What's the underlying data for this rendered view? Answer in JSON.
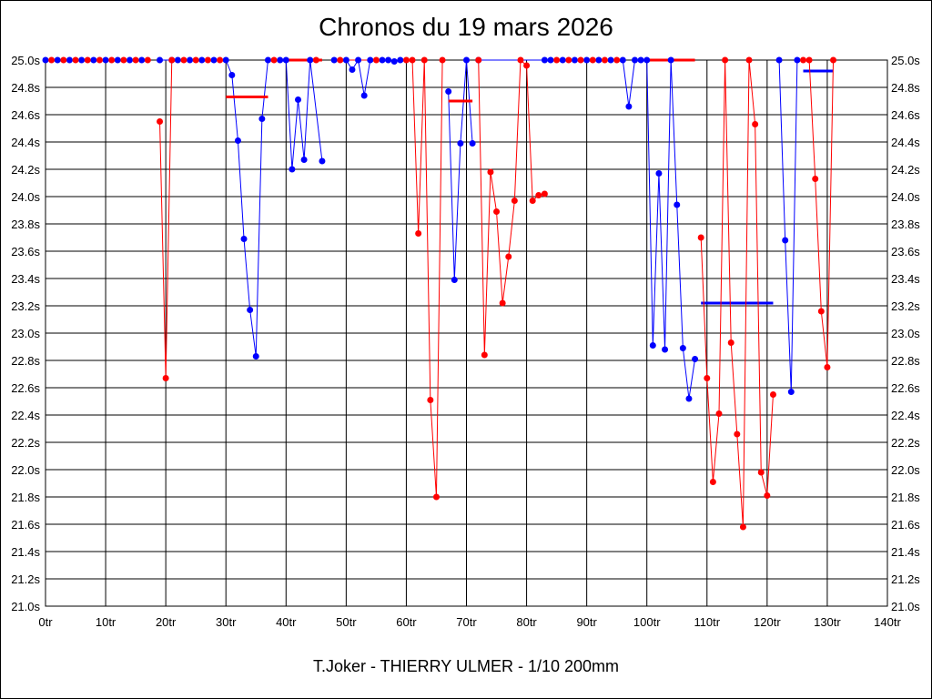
{
  "chart_data": {
    "type": "line",
    "title": "Chronos du 19 mars 2026",
    "xlabel": "T.Joker - THIERRY ULMER - 1/10 200mm",
    "ylabel": "",
    "xlim": [
      0,
      140
    ],
    "ylim": [
      21.0,
      25.0
    ],
    "x_ticks": [
      "0tr",
      "10tr",
      "20tr",
      "30tr",
      "40tr",
      "50tr",
      "60tr",
      "70tr",
      "80tr",
      "90tr",
      "100tr",
      "110tr",
      "120tr",
      "130tr",
      "140tr"
    ],
    "y_ticks": [
      "21.0s",
      "21.2s",
      "21.4s",
      "21.6s",
      "21.8s",
      "22.0s",
      "22.2s",
      "22.4s",
      "22.6s",
      "22.8s",
      "23.0s",
      "23.2s",
      "23.4s",
      "23.6s",
      "23.8s",
      "24.0s",
      "24.2s",
      "24.4s",
      "24.6s",
      "24.8s",
      "25.0s"
    ],
    "grid": true,
    "series": [
      {
        "name": "blue",
        "color": "#0000ff",
        "segments": [
          [
            [
              0,
              25
            ],
            [
              2,
              25
            ],
            [
              4,
              25
            ],
            [
              6,
              25
            ],
            [
              8,
              25
            ],
            [
              10,
              25
            ],
            [
              12,
              25
            ],
            [
              14,
              25
            ],
            [
              16,
              25
            ]
          ],
          [
            [
              19,
              25
            ],
            [
              21,
              25
            ],
            [
              22,
              25
            ],
            [
              24,
              25
            ],
            [
              26,
              25
            ],
            [
              28,
              25
            ],
            [
              30,
              25
            ],
            [
              31,
              24.89
            ],
            [
              32,
              24.41
            ],
            [
              33,
              23.69
            ],
            [
              34,
              23.17
            ],
            [
              35,
              22.83
            ],
            [
              36,
              24.57
            ],
            [
              37,
              25
            ],
            [
              39,
              25
            ],
            [
              40,
              25
            ],
            [
              41,
              24.2
            ],
            [
              42,
              24.71
            ],
            [
              43,
              24.27
            ],
            [
              44,
              25
            ],
            [
              46,
              24.26
            ]
          ],
          [
            [
              48,
              25
            ],
            [
              50,
              25
            ],
            [
              51,
              24.93
            ],
            [
              52,
              25
            ],
            [
              53,
              24.74
            ],
            [
              54,
              25
            ],
            [
              56,
              25
            ],
            [
              57,
              25
            ],
            [
              58,
              24.99
            ],
            [
              59,
              25
            ]
          ],
          [
            [
              67,
              24.77
            ],
            [
              68,
              23.39
            ],
            [
              69,
              24.39
            ],
            [
              70,
              25
            ],
            [
              71,
              24.39
            ]
          ],
          [
            [
              72,
              25
            ],
            [
              83,
              25
            ]
          ],
          [
            [
              84,
              25
            ],
            [
              86,
              25
            ],
            [
              88,
              25
            ],
            [
              90,
              25
            ],
            [
              92,
              25
            ],
            [
              94,
              25
            ],
            [
              96,
              25
            ],
            [
              97,
              24.66
            ],
            [
              98,
              25
            ],
            [
              99,
              25
            ],
            [
              100,
              25
            ],
            [
              101,
              22.91
            ],
            [
              102,
              24.17
            ],
            [
              103,
              22.88
            ],
            [
              104,
              25
            ],
            [
              105,
              23.94
            ],
            [
              106,
              22.89
            ],
            [
              107,
              22.52
            ],
            [
              108,
              22.81
            ]
          ],
          [
            [
              122,
              25
            ],
            [
              123,
              23.68
            ],
            [
              124,
              22.57
            ],
            [
              125,
              25
            ]
          ]
        ],
        "mean_lines": [
          [
            109,
            121,
            23.22
          ],
          [
            126,
            131,
            24.92
          ]
        ]
      },
      {
        "name": "red",
        "color": "#ff0000",
        "segments": [
          [
            [
              1,
              25
            ],
            [
              3,
              25
            ],
            [
              5,
              25
            ],
            [
              7,
              25
            ],
            [
              9,
              25
            ],
            [
              11,
              25
            ],
            [
              13,
              25
            ],
            [
              15,
              25
            ],
            [
              17,
              25
            ]
          ],
          [
            [
              19,
              24.55
            ],
            [
              20,
              22.67
            ],
            [
              21,
              25
            ],
            [
              23,
              25
            ],
            [
              25,
              25
            ],
            [
              27,
              25
            ],
            [
              29,
              25
            ]
          ],
          [
            [
              38,
              25
            ],
            [
              45,
              25
            ]
          ],
          [
            [
              49,
              25
            ],
            [
              55,
              25
            ]
          ],
          [
            [
              60,
              25
            ],
            [
              61,
              25
            ],
            [
              62,
              23.73
            ],
            [
              63,
              25
            ],
            [
              64,
              22.51
            ],
            [
              65,
              21.8
            ],
            [
              66,
              25
            ]
          ],
          [
            [
              72,
              25
            ],
            [
              73,
              22.84
            ],
            [
              74,
              24.18
            ],
            [
              75,
              23.89
            ],
            [
              76,
              23.22
            ],
            [
              77,
              23.56
            ],
            [
              78,
              23.97
            ],
            [
              79,
              25
            ],
            [
              80,
              24.96
            ],
            [
              81,
              23.97
            ],
            [
              82,
              24.01
            ],
            [
              83,
              24.02
            ]
          ],
          [
            [
              85,
              25
            ],
            [
              87,
              25
            ],
            [
              89,
              25
            ],
            [
              91,
              25
            ],
            [
              93,
              25
            ],
            [
              95,
              25
            ]
          ],
          [
            [
              109,
              23.7
            ],
            [
              110,
              22.67
            ],
            [
              111,
              21.91
            ],
            [
              112,
              22.41
            ],
            [
              113,
              25
            ],
            [
              114,
              22.93
            ],
            [
              115,
              22.26
            ],
            [
              116,
              21.58
            ],
            [
              117,
              25
            ],
            [
              118,
              24.53
            ],
            [
              119,
              21.98
            ],
            [
              120,
              21.81
            ],
            [
              121,
              22.55
            ]
          ],
          [
            [
              126,
              25
            ],
            [
              127,
              25
            ],
            [
              128,
              24.13
            ],
            [
              129,
              23.16
            ],
            [
              130,
              22.75
            ],
            [
              131,
              25
            ]
          ]
        ],
        "flat_lines": [
          [
            40,
            46,
            25
          ],
          [
            100,
            108,
            25
          ]
        ],
        "mean_lines": [
          [
            30,
            37,
            24.73
          ],
          [
            67,
            71,
            24.7
          ]
        ]
      }
    ]
  }
}
